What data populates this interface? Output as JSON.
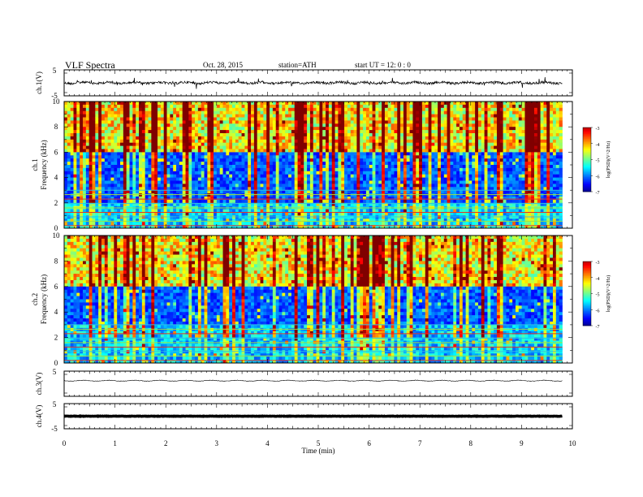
{
  "header": {
    "title": "VLF  Spectra",
    "date": "Oct. 28, 2015",
    "station": "station=ATH",
    "start_ut": "start  UT  =   12: 0  : 0"
  },
  "chart_data": [
    {
      "id": "ch1-waveform",
      "type": "line",
      "title": "",
      "ylabel": "ch.1(V)",
      "ylim": [
        -5,
        5
      ],
      "yticks": [
        "5",
        "-5"
      ],
      "xlim": [
        0,
        10
      ],
      "series": [
        {
          "x": [
            0,
            9.8
          ],
          "y": [
            0,
            0
          ]
        }
      ]
    },
    {
      "id": "ch1-spectrogram",
      "type": "heatmap",
      "ylabel_lines": [
        "ch.1",
        "Frequency  (kHz)"
      ],
      "ylim": [
        0,
        10
      ],
      "yticks": [
        "0",
        "2",
        "4",
        "6",
        "8",
        "10"
      ],
      "xlim": [
        0,
        10
      ],
      "x_data_end": 9.8,
      "colorbar": {
        "label": "log(PSD)(V^2/Hz)",
        "range": [
          -7,
          -3
        ],
        "ticks": [
          "-3",
          "-4",
          "-5",
          "-6",
          "-7"
        ]
      }
    },
    {
      "id": "ch2-spectrogram",
      "type": "heatmap",
      "ylabel_lines": [
        "ch.2",
        "Frequency  (kHz)"
      ],
      "ylim": [
        0,
        10
      ],
      "yticks": [
        "0",
        "2",
        "4",
        "6",
        "8",
        "10"
      ],
      "xlim": [
        0,
        10
      ],
      "x_data_end": 9.8,
      "colorbar": {
        "label": "log(PSD)(V^2/Hz)",
        "range": [
          -7,
          -3
        ],
        "ticks": [
          "-3",
          "-4",
          "-5",
          "-6",
          "-7"
        ]
      }
    },
    {
      "id": "ch3-waveform",
      "type": "line",
      "ylabel": "ch.3(V)",
      "ylim": [
        -5,
        5
      ],
      "yticks": [
        "5"
      ],
      "xlim": [
        0,
        10
      ],
      "series": [
        {
          "x": [
            0,
            9.8
          ],
          "y": [
            1.2,
            1.2
          ]
        }
      ]
    },
    {
      "id": "ch4-waveform",
      "type": "line",
      "ylabel": "ch.4(V)",
      "ylim": [
        -5,
        5
      ],
      "yticks": [
        "5",
        "-5"
      ],
      "xlim": [
        0,
        10
      ],
      "xlabel": "Time  (min)",
      "xticks": [
        "0",
        "1",
        "2",
        "3",
        "4",
        "5",
        "6",
        "7",
        "8",
        "9",
        "10"
      ],
      "series": [
        {
          "x": [
            0,
            9.8
          ],
          "y": [
            0,
            0
          ]
        }
      ]
    }
  ]
}
